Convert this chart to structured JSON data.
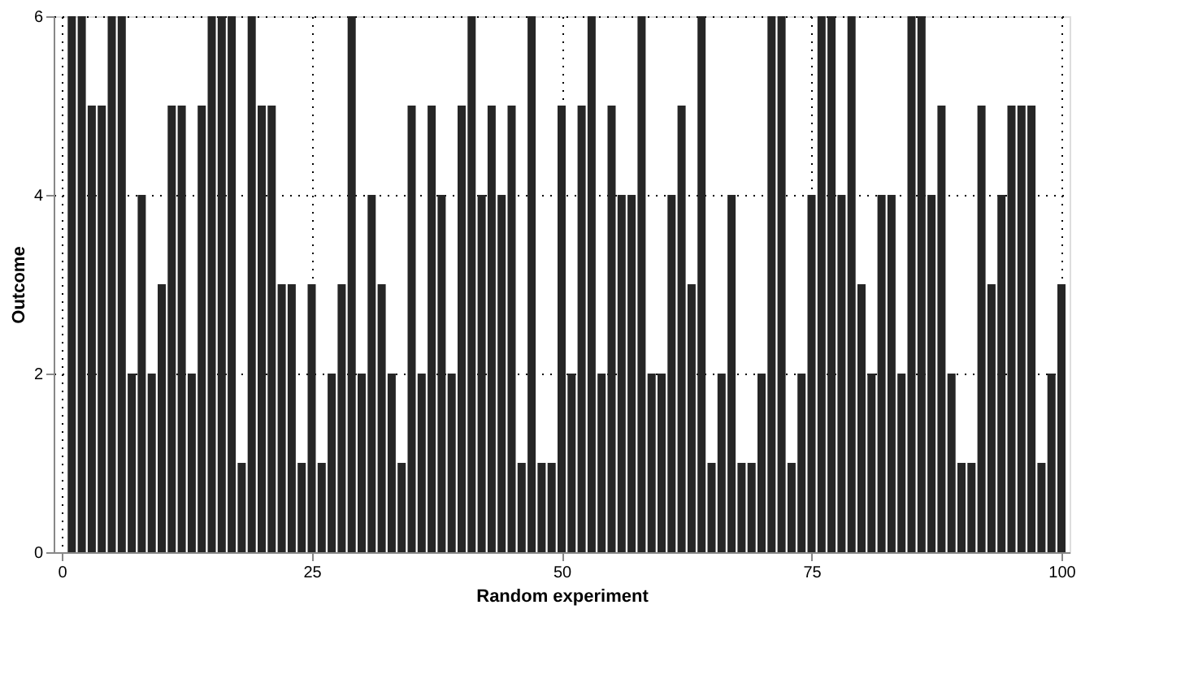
{
  "chart_data": {
    "type": "bar",
    "xlabel": "Random experiment",
    "ylabel": "Outcome",
    "x": [
      1,
      2,
      3,
      4,
      5,
      6,
      7,
      8,
      9,
      10,
      11,
      12,
      13,
      14,
      15,
      16,
      17,
      18,
      19,
      20,
      21,
      22,
      23,
      24,
      25,
      26,
      27,
      28,
      29,
      30,
      31,
      32,
      33,
      34,
      35,
      36,
      37,
      38,
      39,
      40,
      41,
      42,
      43,
      44,
      45,
      46,
      47,
      48,
      49,
      50,
      51,
      52,
      53,
      54,
      55,
      56,
      57,
      58,
      59,
      60,
      61,
      62,
      63,
      64,
      65,
      66,
      67,
      68,
      69,
      70,
      71,
      72,
      73,
      74,
      75,
      76,
      77,
      78,
      79,
      80,
      81,
      82,
      83,
      84,
      85,
      86,
      87,
      88,
      89,
      90,
      91,
      92,
      93,
      94,
      95,
      96,
      97,
      98,
      99,
      100
    ],
    "values": [
      6,
      6,
      5,
      5,
      6,
      6,
      2,
      4,
      2,
      3,
      5,
      5,
      2,
      5,
      6,
      6,
      6,
      1,
      6,
      5,
      5,
      3,
      3,
      1,
      3,
      1,
      2,
      3,
      6,
      2,
      4,
      3,
      2,
      1,
      5,
      2,
      5,
      4,
      2,
      5,
      6,
      4,
      5,
      4,
      5,
      1,
      6,
      1,
      1,
      5,
      2,
      5,
      6,
      2,
      5,
      4,
      4,
      6,
      2,
      2,
      4,
      5,
      3,
      6,
      1,
      2,
      4,
      1,
      1,
      2,
      6,
      6,
      1,
      2,
      4,
      6,
      6,
      4,
      6,
      3,
      2,
      4,
      4,
      2,
      6,
      6,
      4,
      5,
      2,
      1,
      1,
      5,
      3,
      4,
      5,
      5,
      5,
      1,
      2,
      3
    ],
    "color": "#262626",
    "xlim": [
      0,
      100
    ],
    "xticks": [
      0,
      25,
      50,
      75,
      100
    ],
    "ylim": [
      0,
      6
    ],
    "yticks": [
      0,
      2,
      4,
      6
    ],
    "grid": true
  }
}
